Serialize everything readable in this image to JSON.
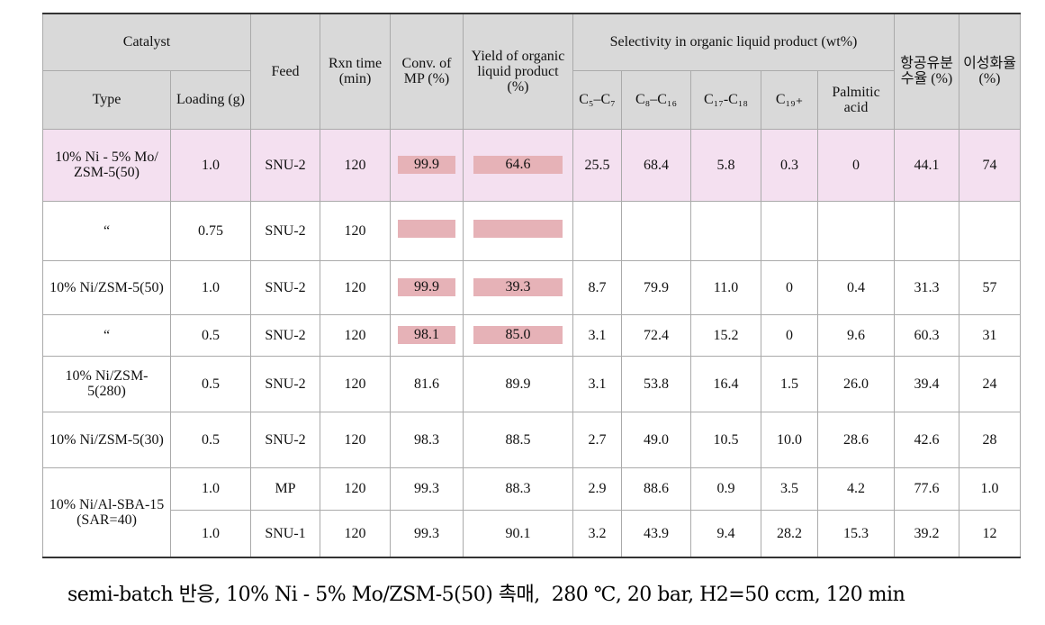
{
  "table": {
    "header": {
      "catalyst": "Catalyst",
      "type": "Type",
      "loading": "Loading (g)",
      "feed": "Feed",
      "time": "Rxn time (min)",
      "conv": "Conv. of MP (%)",
      "yield": "Yield of organic liquid product (%)",
      "selectivity": "Selectivity in organic liquid product (wt%)",
      "sub": [
        "C₅–C₇",
        "C₈–C₁₆",
        "C₁₇-C₁₈",
        "C₁₉₊",
        "Palmitic acid"
      ],
      "aviation": "항공유분수율 (%)",
      "isomer": "이성화율 (%)"
    },
    "rows": [
      {
        "cells": [
          "10% Ni - 5% Mo/ ZSM-5(50)",
          "1.0",
          "SNU-2",
          "120",
          "99.9",
          "64.6",
          "25.5",
          "68.4",
          "5.8",
          "0.3",
          "0",
          "44.1",
          "74"
        ],
        "highlighted": true,
        "boxed": true
      },
      {
        "cells": [
          "“",
          "0.75",
          "SNU-2",
          "120",
          null,
          null,
          null,
          null,
          null,
          null,
          null,
          null,
          null
        ],
        "highlighted": false,
        "boxed": true
      },
      {
        "cells": [
          "10% Ni/ZSM-5(50)",
          "1.0",
          "SNU-2",
          "120",
          "99.9",
          "39.3",
          "8.7",
          "79.9",
          "11.0",
          "0",
          "0.4",
          "31.3",
          "57"
        ],
        "highlighted": false,
        "boxed": true
      },
      {
        "cells": [
          "“",
          "0.5",
          "SNU-2",
          "120",
          "98.1",
          "85.0",
          "3.1",
          "72.4",
          "15.2",
          "0",
          "9.6",
          "60.3",
          "31"
        ],
        "highlighted": false,
        "boxed": true
      },
      {
        "cells": [
          "10% Ni/ZSM-5(280)",
          "0.5",
          "SNU-2",
          "120",
          "81.6",
          "89.9",
          "3.1",
          "53.8",
          "16.4",
          "1.5",
          "26.0",
          "39.4",
          "24"
        ],
        "highlighted": false,
        "boxed": false
      },
      {
        "cells": [
          "10% Ni/ZSM-5(30)",
          "0.5",
          "SNU-2",
          "120",
          "98.3",
          "88.5",
          "2.7",
          "49.0",
          "10.5",
          "10.0",
          "28.6",
          "42.6",
          "28"
        ],
        "highlighted": false,
        "boxed": false
      },
      {
        "cells": [
          "10% Ni/Al-SBA-15 (SAR=40)",
          "1.0",
          "MP",
          "120",
          "99.3",
          "88.3",
          "2.9",
          "88.6",
          "0.9",
          "3.5",
          "4.2",
          "77.6",
          "1.0"
        ],
        "highlighted": false,
        "boxed": false
      },
      {
        "cells": [
          null,
          "1.0",
          "SNU-1",
          "120",
          "99.3",
          "90.1",
          "3.2",
          "43.9",
          "9.4",
          "28.2",
          "15.3",
          "39.2",
          "12"
        ],
        "highlighted": false,
        "boxed": false
      }
    ]
  },
  "caption": "semi-batch 반응, 10% Ni - 5% Mo/ZSM-5(50) 촉매,  280 ℃, 20 bar, H2=50 ccm, 120 min"
}
